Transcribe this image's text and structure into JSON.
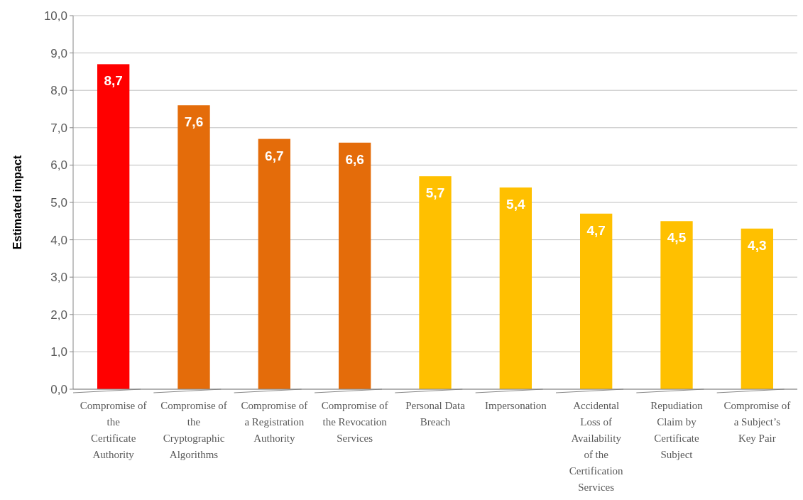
{
  "chart_data": {
    "type": "bar",
    "ylabel": "Estimated impact",
    "categories": [
      "Compromise of the Certificate Authority",
      "Compromise of the Cryptographic Algorithms",
      "Compromise of a Registration Authority",
      "Compromise of the Revocation Services",
      "Personal Data Breach",
      "Impersonation",
      "Accidental Loss of Availability of the Certification Services",
      "Repudiation Claim by Certificate Subject",
      "Compromise of a Subject’s Key Pair"
    ],
    "values": [
      8.7,
      7.6,
      6.7,
      6.6,
      5.7,
      5.4,
      4.7,
      4.5,
      4.3
    ],
    "colors": [
      "#ff0000",
      "#e46c0a",
      "#e46c0a",
      "#e46c0a",
      "#ffc000",
      "#ffc000",
      "#ffc000",
      "#ffc000",
      "#ffc000"
    ],
    "value_labels": [
      "8,7",
      "7,6",
      "6,7",
      "6,6",
      "5,7",
      "5,4",
      "4,7",
      "4,5",
      "4,3"
    ],
    "ylim": [
      0,
      10
    ],
    "yticks": [
      {
        "value": 0,
        "label": "0,0"
      },
      {
        "value": 1,
        "label": "1,0"
      },
      {
        "value": 2,
        "label": "2,0"
      },
      {
        "value": 3,
        "label": "3,0"
      },
      {
        "value": 4,
        "label": "4,0"
      },
      {
        "value": 5,
        "label": "5,0"
      },
      {
        "value": 6,
        "label": "6,0"
      },
      {
        "value": 7,
        "label": "7,0"
      },
      {
        "value": 8,
        "label": "8,0"
      },
      {
        "value": 9,
        "label": "9,0"
      },
      {
        "value": 10,
        "label": "10,0"
      }
    ],
    "grid": "y"
  }
}
